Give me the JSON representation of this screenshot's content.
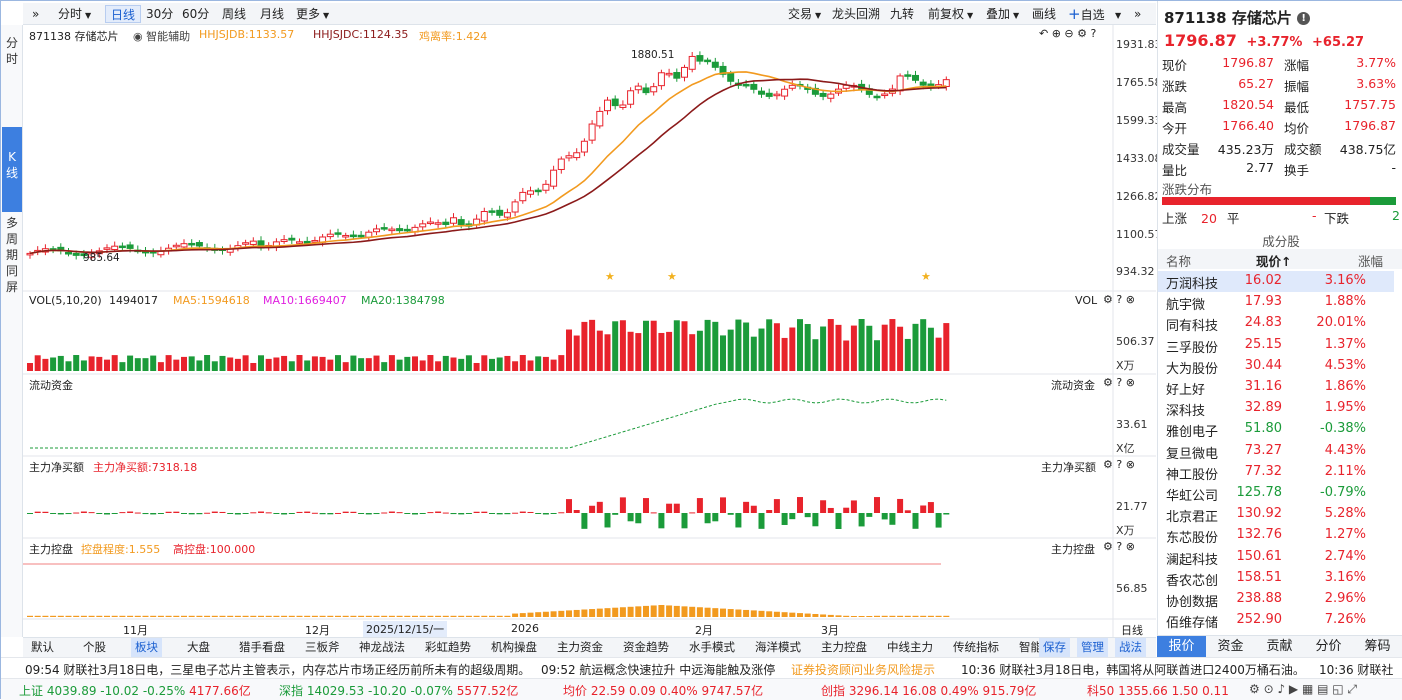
{
  "toolbar": {
    "expand": "»",
    "period_dropdown": "分时",
    "periods": [
      "日线",
      "30分",
      "60分",
      "周线",
      "月线"
    ],
    "more": "更多",
    "right_items": [
      "交易",
      "龙头回溯",
      "九转",
      "前复权",
      "叠加",
      "画线"
    ],
    "add_watch": "自选",
    "collapse": "»",
    "active_period": "日线"
  },
  "rail": {
    "top_label": "分时",
    "k_label": "K线",
    "multi_label": "多周期同屏"
  },
  "main_pane": {
    "stock_label": "871138 存储芯片",
    "assist_label": "智能辅助",
    "hhjsjdb": "HHJSJDB:1133.57",
    "hhjsjdc": "HHJSJDC:1124.35",
    "deviation": "鸡离率:1.424",
    "y_ticks": [
      "1931.83",
      "1765.58",
      "1599.33",
      "1433.08",
      "1266.82",
      "1100.57",
      "934.32"
    ],
    "high_label": "1880.51",
    "low_label": "985.64"
  },
  "vol_pane": {
    "label": "VOL(5,10,20)",
    "value": "1494017",
    "ma5": "MA5:1594618",
    "ma10": "MA10:1669407",
    "ma20": "MA20:1384798",
    "right_label": "VOL",
    "y_tick": "506.37",
    "unit": "X万"
  },
  "flow_pane": {
    "label": "流动资金",
    "right_label": "流动资金",
    "y_tick": "33.61",
    "unit": "X亿"
  },
  "net_pane": {
    "label": "主力净买额",
    "value": "主力净买额:7318.18",
    "right_label": "主力净买额",
    "y_tick": "21.77",
    "unit": "X万"
  },
  "ctrl_pane": {
    "label": "主力控盘",
    "degree": "控盘程度:1.555",
    "high": "高控盘:100.000",
    "right_label": "主力控盘",
    "y_tick": "56.85"
  },
  "x_axis": {
    "labels": [
      "11月",
      "12月",
      "2025/12/15/一",
      "2026",
      "2月",
      "3月"
    ],
    "period": "日线"
  },
  "bottom_tabs": {
    "left": [
      "默认",
      "个股",
      "板块",
      "大盘",
      "猎手看盘",
      "三板斧",
      "神龙战法",
      "彩虹趋势",
      "机构操盘",
      "主力资金",
      "资金趋势",
      "水手模式",
      "海洋模式",
      "主力控盘",
      "中线主力",
      "传统指标",
      "智能网格"
    ],
    "selected": "板块",
    "right": [
      "保存",
      "管理",
      "战法"
    ]
  },
  "quote": {
    "code": "871138",
    "name": "存储芯片",
    "price": "1796.87",
    "change_pct": "+3.77%",
    "change": "+65.27",
    "rows": [
      {
        "l1": "现价",
        "v1": "1796.87",
        "l2": "涨幅",
        "v2": "3.77%"
      },
      {
        "l1": "涨跌",
        "v1": "65.27",
        "l2": "振幅",
        "v2": "3.63%"
      },
      {
        "l1": "最高",
        "v1": "1820.54",
        "l2": "最低",
        "v2": "1757.75"
      },
      {
        "l1": "今开",
        "v1": "1766.40",
        "l2": "均价",
        "v2": "1796.87"
      },
      {
        "l1": "成交量",
        "v1": "435.23万",
        "l2": "成交额",
        "v2": "438.75亿"
      },
      {
        "l1": "量比",
        "v1": "2.77",
        "l2": "换手",
        "v2": "-"
      }
    ],
    "dist_title": "涨跌分布",
    "up_label": "上涨",
    "up_count": "20",
    "flat_label": "平",
    "flat_count": "-",
    "down_label": "下跌",
    "down_count": "2",
    "comp_title": "成分股",
    "comp_headers": [
      "名称",
      "现价↑",
      "涨幅"
    ],
    "components": [
      {
        "name": "万润科技",
        "price": "16.02",
        "pct": "3.16%",
        "up": true
      },
      {
        "name": "航宇微",
        "price": "17.93",
        "pct": "1.88%",
        "up": true
      },
      {
        "name": "同有科技",
        "price": "24.83",
        "pct": "20.01%",
        "up": true
      },
      {
        "name": "三孚股份",
        "price": "25.15",
        "pct": "1.37%",
        "up": true
      },
      {
        "name": "大为股份",
        "price": "30.44",
        "pct": "4.53%",
        "up": true
      },
      {
        "name": "好上好",
        "price": "31.16",
        "pct": "1.86%",
        "up": true
      },
      {
        "name": "深科技",
        "price": "32.89",
        "pct": "1.95%",
        "up": true
      },
      {
        "name": "雅创电子",
        "price": "51.80",
        "pct": "-0.38%",
        "up": false
      },
      {
        "name": "复旦微电",
        "price": "73.27",
        "pct": "4.43%",
        "up": true
      },
      {
        "name": "神工股份",
        "price": "77.32",
        "pct": "2.11%",
        "up": true
      },
      {
        "name": "华虹公司",
        "price": "125.78",
        "pct": "-0.79%",
        "up": false
      },
      {
        "name": "北京君正",
        "price": "130.92",
        "pct": "5.28%",
        "up": true
      },
      {
        "name": "东芯股份",
        "price": "132.76",
        "pct": "1.27%",
        "up": true
      },
      {
        "name": "澜起科技",
        "price": "150.61",
        "pct": "2.74%",
        "up": true
      },
      {
        "name": "香农芯创",
        "price": "158.51",
        "pct": "3.16%",
        "up": true
      },
      {
        "name": "协创数据",
        "price": "238.88",
        "pct": "2.96%",
        "up": true
      },
      {
        "name": "佰维存储",
        "price": "252.90",
        "pct": "7.26%",
        "up": true
      }
    ],
    "tabs": [
      "报价",
      "资金",
      "贡献",
      "分价",
      "筹码"
    ]
  },
  "ticker": {
    "n1": "09:54 财联社3月18日电，三星电子芯片主管表示，内存芯片市场正经历前所未有的超级周期。",
    "n2": "09:52 航运概念快速拉升 中远海能触及涨停",
    "n3": "证券投资顾问业务风险提示",
    "n4": "10:36 财联社3月18日电，韩国将从阿联酋进口2400万桶石油。",
    "n5": "10:36 财联社"
  },
  "indices": [
    {
      "name": "上证",
      "price": "4039.89",
      "chg": "-10.02",
      "pct": "-0.25%",
      "amt": "4177.66亿",
      "up": false
    },
    {
      "name": "深指",
      "price": "14029.53",
      "chg": "-10.20",
      "pct": "-0.07%",
      "amt": "5577.52亿",
      "up": false
    },
    {
      "name": "均价",
      "price": "22.59",
      "chg": "0.09",
      "pct": "0.40%",
      "amt": "9747.57亿",
      "up": true
    },
    {
      "name": "创指",
      "price": "3296.14",
      "chg": "16.08",
      "pct": "0.49%",
      "amt": "915.79亿",
      "up": true
    },
    {
      "name": "科50",
      "price": "1355.66",
      "chg": "1.50",
      "pct": "0.11",
      "amt": "",
      "up": true
    }
  ],
  "colors": {
    "up": "#e8232c",
    "down": "#1b9b3a",
    "accent": "#1a5fd0",
    "ma_orange": "#f29a1f",
    "ma_dark": "#8b1a1a"
  }
}
